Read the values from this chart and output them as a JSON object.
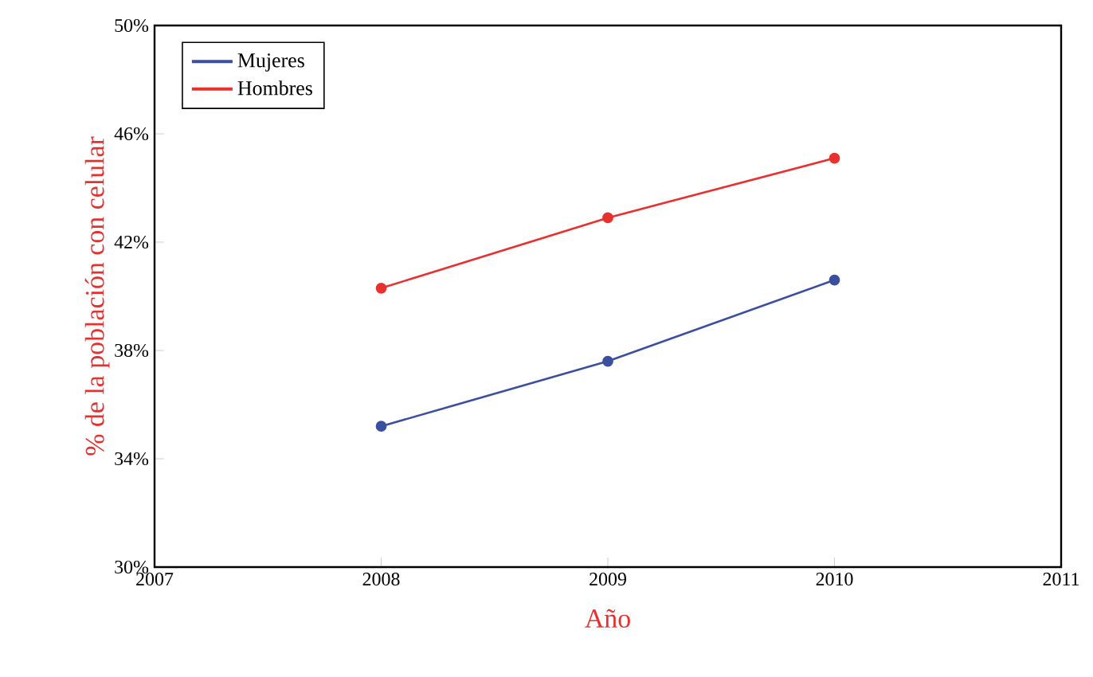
{
  "chart_data": {
    "type": "line",
    "xlabel": "Año",
    "ylabel": "% de la población con celular",
    "x": [
      2008,
      2009,
      2010
    ],
    "series": [
      {
        "name": "Mujeres",
        "color": "#3a4fa0",
        "values": [
          35.2,
          37.6,
          40.6
        ]
      },
      {
        "name": "Hombres",
        "color": "#e8312f",
        "values": [
          40.3,
          42.9,
          45.1
        ]
      }
    ],
    "xlim": [
      2007,
      2011
    ],
    "xticks": [
      2007,
      2008,
      2009,
      2010,
      2011
    ],
    "ylim": [
      30,
      50
    ],
    "yticks": [
      {
        "value": 30,
        "label": "30%"
      },
      {
        "value": 34,
        "label": "34%"
      },
      {
        "value": 38,
        "label": "38%"
      },
      {
        "value": 42,
        "label": "42%"
      },
      {
        "value": 46,
        "label": "46%"
      },
      {
        "value": 50,
        "label": "50%"
      }
    ],
    "legend": "top left",
    "marker": "circle",
    "line_style": "solid",
    "grid": false
  }
}
